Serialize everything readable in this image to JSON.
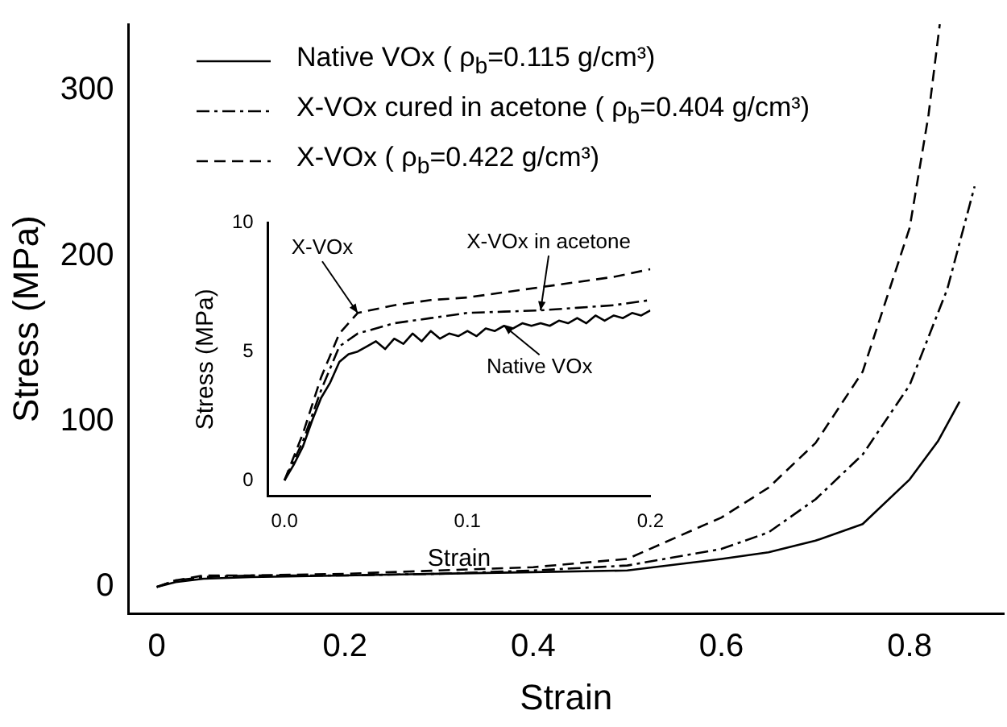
{
  "chart_data": [
    {
      "type": "line",
      "xlabel": "Strain",
      "ylabel": "Stress (MPa)",
      "xlim": [
        -0.03,
        0.9
      ],
      "ylim": [
        -16,
        340
      ],
      "xticks": [
        0,
        0.2,
        0.4,
        0.6,
        0.8
      ],
      "yticks": [
        0,
        100,
        200,
        300
      ],
      "grid": false,
      "legend": "top left",
      "marker": "none",
      "series": [
        {
          "name": "Native VOx (  ρ$_{b}$=0.115 g/cm³)",
          "color": "#000000",
          "line_style": "solid",
          "x": [
            0,
            0.02,
            0.05,
            0.1,
            0.2,
            0.3,
            0.4,
            0.5,
            0.6,
            0.65,
            0.7,
            0.75,
            0.8,
            0.83,
            0.853
          ],
          "values": [
            0,
            3,
            5,
            6,
            7,
            8,
            9,
            10,
            17,
            21,
            28,
            38,
            65,
            88,
            112
          ]
        },
        {
          "name": "X-VOx cured in acetone (  ρ$_{b}$=0.404 g/cm³)",
          "color": "#000000",
          "line_style": "dashdot",
          "x": [
            0,
            0.02,
            0.05,
            0.1,
            0.2,
            0.3,
            0.4,
            0.5,
            0.6,
            0.65,
            0.7,
            0.75,
            0.8,
            0.84,
            0.869
          ],
          "values": [
            0,
            4,
            6,
            7,
            7,
            8,
            10,
            13,
            23,
            33,
            53,
            80,
            122,
            180,
            242
          ]
        },
        {
          "name": "X-VOx (  ρ$_{b}$=0.422 g/cm³)",
          "color": "#000000",
          "line_style": "dashed",
          "x": [
            0,
            0.02,
            0.05,
            0.1,
            0.2,
            0.3,
            0.4,
            0.5,
            0.6,
            0.65,
            0.7,
            0.75,
            0.8,
            0.82,
            0.832
          ],
          "values": [
            0,
            4,
            7,
            7,
            8,
            10,
            12,
            17,
            42,
            60,
            87,
            130,
            217,
            285,
            340
          ]
        }
      ]
    },
    {
      "type": "line",
      "xlabel": "Strain",
      "ylabel": "Stress (MPa)",
      "xlim": [
        -0.009,
        0.2
      ],
      "ylim": [
        -0.6,
        10
      ],
      "xticks": [
        {
          "value": 0,
          "label": "0.0"
        },
        0.1,
        0.2
      ],
      "yticks": [
        0,
        5,
        10
      ],
      "grid": false,
      "marker": "none",
      "annotations": [
        {
          "text": "X-VOx",
          "x": 0.04,
          "y": 6.5
        },
        {
          "text": "X-VOx in acetone",
          "x": 0.14,
          "y": 6.6
        },
        {
          "text": "Native VOx",
          "x": 0.12,
          "y": 6.0
        }
      ],
      "series": [
        {
          "color": "#000000",
          "line_style": "solid",
          "x": [
            0,
            0.005,
            0.01,
            0.015,
            0.02,
            0.025,
            0.03,
            0.035,
            0.04,
            0.045,
            0.05,
            0.055,
            0.06,
            0.065,
            0.07,
            0.075,
            0.08,
            0.085,
            0.09,
            0.095,
            0.1,
            0.105,
            0.11,
            0.115,
            0.12,
            0.125,
            0.13,
            0.135,
            0.14,
            0.145,
            0.15,
            0.155,
            0.16,
            0.165,
            0.17,
            0.175,
            0.18,
            0.185,
            0.19,
            0.195,
            0.2
          ],
          "values": [
            0,
            0.6,
            1.3,
            2.3,
            3.2,
            3.8,
            4.6,
            4.9,
            5.0,
            5.2,
            5.4,
            5.1,
            5.5,
            5.3,
            5.7,
            5.4,
            5.8,
            5.5,
            5.7,
            5.6,
            5.8,
            5.6,
            5.9,
            5.8,
            6.0,
            5.9,
            6.1,
            6.0,
            6.1,
            6.0,
            6.2,
            6.1,
            6.3,
            6.1,
            6.4,
            6.2,
            6.4,
            6.3,
            6.5,
            6.4,
            6.6
          ]
        },
        {
          "color": "#000000",
          "line_style": "dashdot",
          "x": [
            0,
            0.01,
            0.02,
            0.03,
            0.04,
            0.06,
            0.08,
            0.1,
            0.12,
            0.14,
            0.16,
            0.18,
            0.2
          ],
          "values": [
            0,
            1.5,
            3.5,
            5.2,
            5.7,
            6.1,
            6.3,
            6.5,
            6.55,
            6.6,
            6.7,
            6.8,
            7.0
          ]
        },
        {
          "color": "#000000",
          "line_style": "dashed",
          "x": [
            0,
            0.01,
            0.02,
            0.03,
            0.04,
            0.06,
            0.08,
            0.1,
            0.12,
            0.14,
            0.16,
            0.18,
            0.2
          ],
          "values": [
            0,
            1.8,
            4.0,
            5.7,
            6.5,
            6.8,
            7.0,
            7.1,
            7.3,
            7.5,
            7.7,
            7.9,
            8.2
          ]
        }
      ]
    }
  ]
}
